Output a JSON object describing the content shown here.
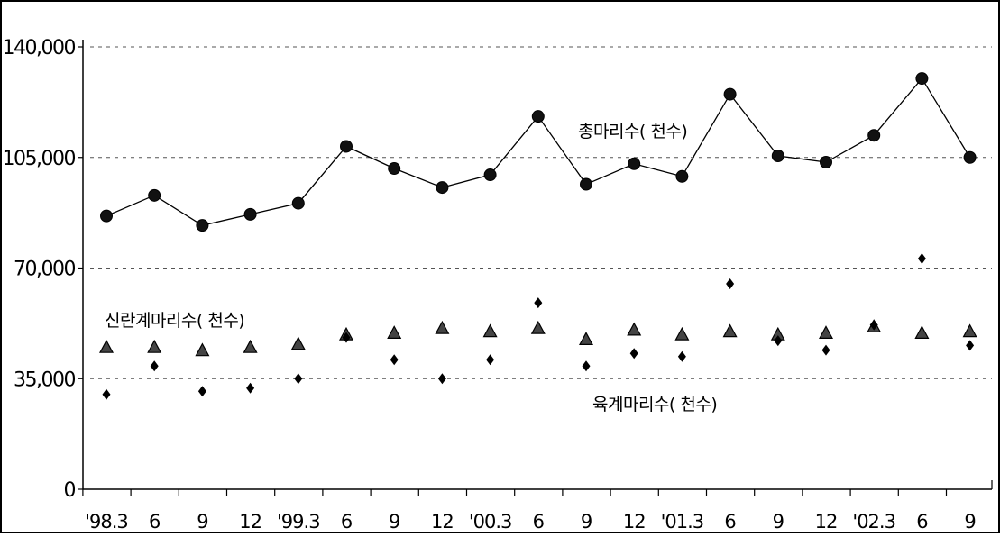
{
  "chart_data": {
    "type": "line",
    "title": "",
    "xlabel": "",
    "ylabel": "",
    "categories": [
      "'98.3",
      "6",
      "9",
      "12",
      "'99.3",
      "6",
      "9",
      "12",
      "'00.3",
      "6",
      "9",
      "12",
      "'01.3",
      "6",
      "9",
      "12",
      "'02.3",
      "6",
      "9"
    ],
    "ylim": [
      0,
      140000
    ],
    "yticks": [
      0,
      35000,
      70000,
      105000,
      140000
    ],
    "ytick_labels": [
      "0",
      "35,000",
      "70,000",
      "105,000",
      "140,000"
    ],
    "grid": "horizontal-dashed",
    "series": [
      {
        "name": "총마리수(천수)",
        "marker": "circle",
        "line": true,
        "values": [
          86500,
          93000,
          83500,
          87000,
          90500,
          108500,
          101500,
          95500,
          99500,
          118000,
          96500,
          103000,
          99000,
          125000,
          105500,
          103500,
          112000,
          130000,
          105000
        ]
      },
      {
        "name": "신란계마리수(천수)",
        "marker": "triangle",
        "line": false,
        "values": [
          45000,
          45000,
          44000,
          45000,
          46000,
          49000,
          49500,
          51000,
          50000,
          51000,
          47500,
          50500,
          49000,
          50000,
          49000,
          49500,
          51500,
          49500,
          50000
        ]
      },
      {
        "name": "육계마리수(천수)",
        "marker": "diamond",
        "line": false,
        "values": [
          30000,
          39000,
          31000,
          32000,
          35000,
          48000,
          41000,
          35000,
          41000,
          59000,
          39000,
          43000,
          42000,
          65000,
          47000,
          44000,
          52000,
          73000,
          45500
        ]
      }
    ],
    "annotations": [
      {
        "text": "총마리수( 천수)",
        "series": 0
      },
      {
        "text": "신란계마리수( 천수)",
        "series": 1
      },
      {
        "text": "육계마리수( 천수)",
        "series": 2
      }
    ],
    "colors": {
      "line": "#000000",
      "grid": "#555555",
      "marker": "#000000"
    }
  }
}
